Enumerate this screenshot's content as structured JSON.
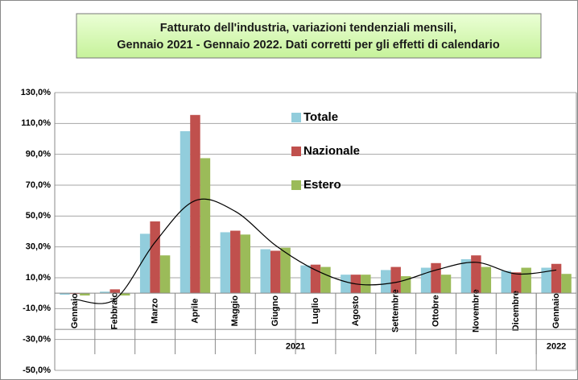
{
  "chart_data": {
    "type": "bar",
    "title": [
      "Fatturato dell'industria, variazioni tendenziali mensili,",
      "Gennaio 2021 - Gennaio 2022. Dati corretti per gli effetti di calendario"
    ],
    "categories": [
      "Gennaio",
      "Febbraio",
      "Marzo",
      "Aprile",
      "Maggio",
      "Giugno",
      "Luglio",
      "Agosto",
      "Settembre",
      "Ottobre",
      "Novembre",
      "Dicembre",
      "Gennaio"
    ],
    "year_groups": [
      {
        "label": "2021",
        "count": 12
      },
      {
        "label": "2022",
        "count": 1
      }
    ],
    "series": [
      {
        "name": "Totale",
        "color": "#92cddc",
        "values": [
          -1,
          1,
          38.5,
          105,
          39.5,
          28.5,
          18,
          12,
          15,
          16.5,
          22,
          14.5,
          16.5
        ]
      },
      {
        "name": "Nazionale",
        "color": "#c0504d",
        "values": [
          -0.5,
          2.5,
          46.5,
          115.5,
          40.5,
          27.5,
          18.5,
          12,
          17,
          19.5,
          24.5,
          13.5,
          19
        ]
      },
      {
        "name": "Estero",
        "color": "#9bbb59",
        "values": [
          -1.5,
          -1.5,
          24.5,
          87.5,
          38,
          29.5,
          17,
          12,
          11,
          12,
          17,
          16.5,
          12.5
        ]
      }
    ],
    "trend": [
      -4,
      -4,
      33,
      60,
      53,
      31,
      15,
      6,
      7,
      15,
      20,
      12.5,
      15
    ],
    "trend_color": "#000000",
    "ylim": [
      -50,
      130
    ],
    "yticks": [
      {
        "value": -50,
        "label": "-50,0%"
      },
      {
        "value": -30,
        "label": "-30,0%"
      },
      {
        "value": -10,
        "label": "-10,0%"
      },
      {
        "value": 10,
        "label": "10,0%"
      },
      {
        "value": 30,
        "label": "30,0%"
      },
      {
        "value": 50,
        "label": "50,0%"
      },
      {
        "value": 70,
        "label": "70,0%"
      },
      {
        "value": 90,
        "label": "90,0%"
      },
      {
        "value": 110,
        "label": "110,0%"
      },
      {
        "value": 130,
        "label": "130,0%"
      }
    ],
    "grid": true
  }
}
